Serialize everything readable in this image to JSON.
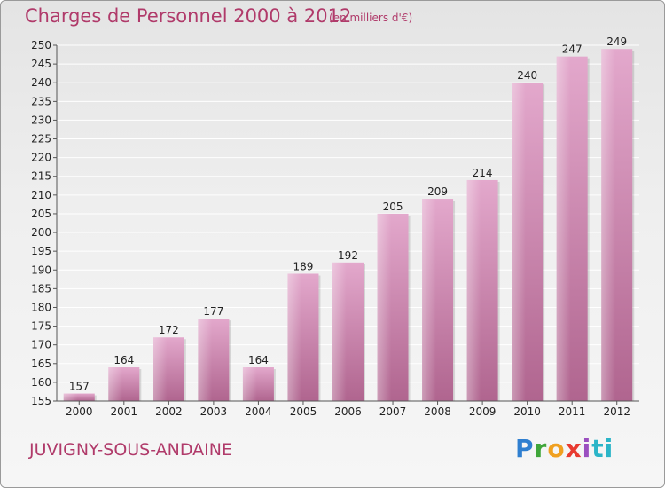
{
  "header": {
    "title": "Charges de Personnel 2000 à 2012",
    "unit": "(en milliers d'€)"
  },
  "footer": {
    "commune": "JUVIGNY-SOUS-ANDAINE",
    "logo": "Proxiti",
    "logo_icon": "proxiti-logo-icon"
  },
  "colors": {
    "bar_top": "#e3a8cc",
    "bar_bottom": "#b0658f",
    "text_accent": "#b03a6a",
    "grid": "#ffffff",
    "axis_text": "#222222"
  },
  "chart_data": {
    "type": "bar",
    "categories": [
      "2000",
      "2001",
      "2002",
      "2003",
      "2004",
      "2005",
      "2006",
      "2007",
      "2008",
      "2009",
      "2010",
      "2011",
      "2012"
    ],
    "values": [
      157,
      164,
      172,
      177,
      164,
      189,
      192,
      205,
      209,
      214,
      240,
      247,
      249
    ],
    "title": "Charges de Personnel 2000 à 2012",
    "xlabel": "",
    "ylabel": "",
    "ylim": [
      155,
      250
    ],
    "yticks": [
      155,
      160,
      165,
      170,
      175,
      180,
      185,
      190,
      195,
      200,
      205,
      210,
      215,
      220,
      225,
      230,
      235,
      240,
      245,
      250
    ],
    "grid": true,
    "legend": "none"
  }
}
